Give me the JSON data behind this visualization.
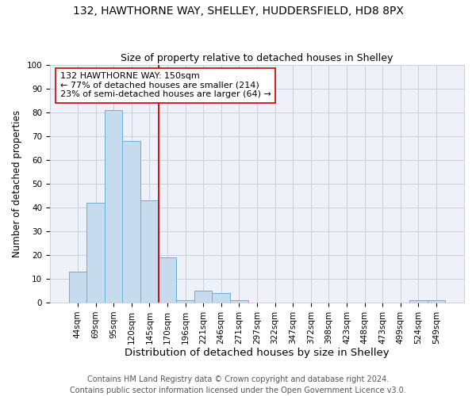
{
  "title": "132, HAWTHORNE WAY, SHELLEY, HUDDERSFIELD, HD8 8PX",
  "subtitle": "Size of property relative to detached houses in Shelley",
  "xlabel": "Distribution of detached houses by size in Shelley",
  "ylabel": "Number of detached properties",
  "bar_labels": [
    "44sqm",
    "69sqm",
    "95sqm",
    "120sqm",
    "145sqm",
    "170sqm",
    "196sqm",
    "221sqm",
    "246sqm",
    "271sqm",
    "297sqm",
    "322sqm",
    "347sqm",
    "372sqm",
    "398sqm",
    "423sqm",
    "448sqm",
    "473sqm",
    "499sqm",
    "524sqm",
    "549sqm"
  ],
  "bar_values": [
    13,
    42,
    81,
    68,
    43,
    19,
    1,
    5,
    4,
    1,
    0,
    0,
    0,
    0,
    0,
    0,
    0,
    0,
    0,
    1,
    1
  ],
  "bar_color": "#c6dcee",
  "bar_edge_color": "#6aaed6",
  "bg_color": "#eef2f8",
  "grid_color": "#c8d0dc",
  "red_line_x": 4.5,
  "annotation_text": "132 HAWTHORNE WAY: 150sqm\n← 77% of detached houses are smaller (214)\n23% of semi-detached houses are larger (64) →",
  "annotation_box_color": "#ffffff",
  "annotation_box_edge": "#cc0000",
  "footer_line1": "Contains HM Land Registry data © Crown copyright and database right 2024.",
  "footer_line2": "Contains public sector information licensed under the Open Government Licence v3.0.",
  "ylim": [
    0,
    100
  ],
  "yticks": [
    0,
    10,
    20,
    30,
    40,
    50,
    60,
    70,
    80,
    90,
    100
  ],
  "title_fontsize": 10,
  "subtitle_fontsize": 9,
  "xlabel_fontsize": 9.5,
  "ylabel_fontsize": 8.5,
  "tick_fontsize": 7.5,
  "annotation_fontsize": 8,
  "footer_fontsize": 7
}
